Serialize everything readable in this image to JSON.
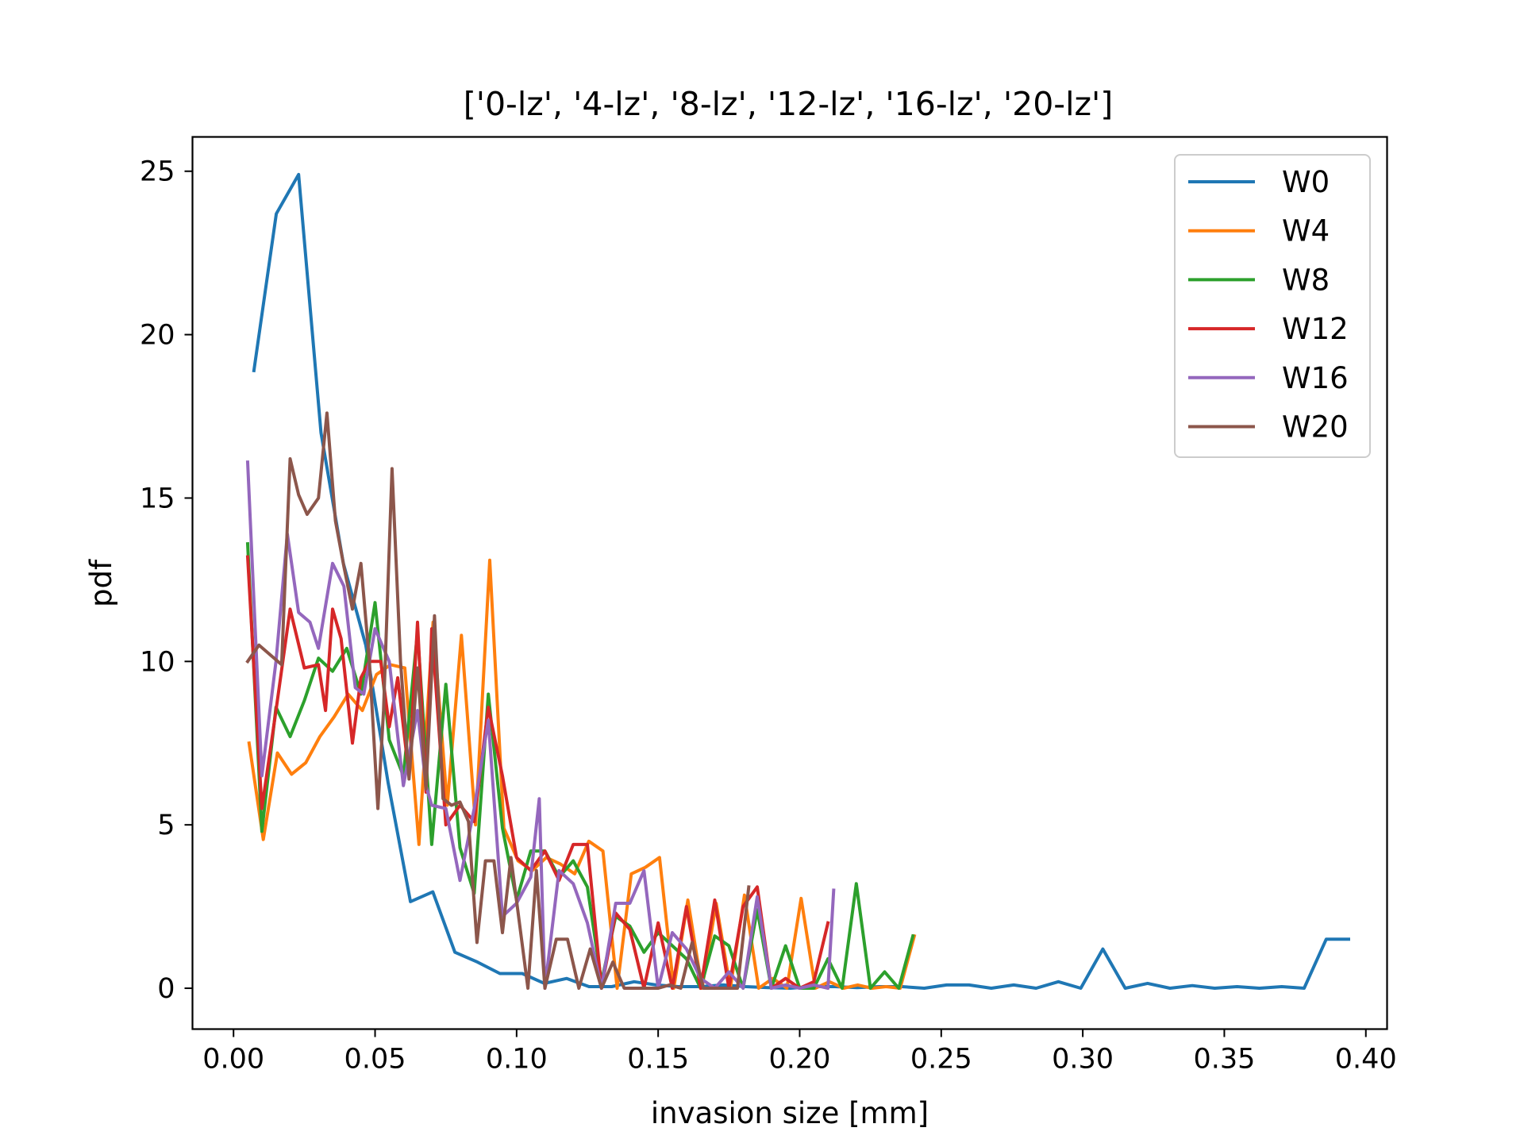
{
  "chart_data": {
    "type": "line",
    "title": "['0-lz', '4-lz', '8-lz', '12-lz', '16-lz', '20-lz']",
    "xlabel": "invasion size [mm]",
    "ylabel": "pdf",
    "xlim": [
      -0.0145,
      0.4075
    ],
    "ylim": [
      -1.25,
      26.05
    ],
    "xticks": [
      0.0,
      0.05,
      0.1,
      0.15,
      0.2,
      0.25,
      0.3,
      0.35,
      0.4
    ],
    "xtick_labels": [
      "0.00",
      "0.05",
      "0.10",
      "0.15",
      "0.20",
      "0.25",
      "0.30",
      "0.35",
      "0.40"
    ],
    "yticks": [
      0,
      5,
      10,
      15,
      20,
      25
    ],
    "ytick_labels": [
      "0",
      "5",
      "10",
      "15",
      "20",
      "25"
    ],
    "grid": false,
    "legend_position": "top-right",
    "series": [
      {
        "name": "W0",
        "color": "#1f77b4",
        "x": [
          0.0072,
          0.0151,
          0.023,
          0.0309,
          0.0388,
          0.0467,
          0.0546,
          0.0625,
          0.0704,
          0.0782,
          0.0862,
          0.0941,
          0.102,
          0.1098,
          0.1177,
          0.1256,
          0.1336,
          0.1415,
          0.1493,
          0.1572,
          0.1651,
          0.173,
          0.1809,
          0.1888,
          0.1967,
          0.2046,
          0.2125,
          0.2203,
          0.2282,
          0.2361,
          0.244,
          0.2519,
          0.2598,
          0.2677,
          0.2756,
          0.2835,
          0.2914,
          0.2993,
          0.3071,
          0.315,
          0.3229,
          0.3308,
          0.3387,
          0.3466,
          0.3545,
          0.3624,
          0.3703,
          0.3782,
          0.386,
          0.3939
        ],
        "y": [
          18.9,
          23.7,
          24.9,
          17.0,
          13.0,
          10.5,
          6.3,
          2.65,
          2.95,
          1.1,
          0.8,
          0.45,
          0.45,
          0.15,
          0.3,
          0.05,
          0.05,
          0.2,
          0.1,
          0.05,
          0.05,
          0.1,
          0.05,
          0.02,
          0.0,
          0.05,
          0.05,
          0.02,
          0.05,
          0.05,
          0.0,
          0.1,
          0.1,
          0.0,
          0.1,
          0.0,
          0.2,
          0.0,
          1.2,
          0.0,
          0.15,
          0.0,
          0.08,
          0.0,
          0.05,
          0.0,
          0.05,
          0.0,
          1.5,
          1.5
        ]
      },
      {
        "name": "W4",
        "color": "#ff7f0e",
        "x": [
          0.0055,
          0.0105,
          0.0155,
          0.0205,
          0.0255,
          0.0305,
          0.0355,
          0.0405,
          0.0455,
          0.0505,
          0.0555,
          0.0605,
          0.0655,
          0.0705,
          0.0755,
          0.0805,
          0.0855,
          0.0905,
          0.0955,
          0.1005,
          0.1055,
          0.1105,
          0.1155,
          0.1205,
          0.1255,
          0.1305,
          0.1355,
          0.1405,
          0.1455,
          0.1505,
          0.1555,
          0.1605,
          0.1655,
          0.1705,
          0.1755,
          0.1805,
          0.1855,
          0.1905,
          0.1955,
          0.2005,
          0.2055,
          0.2105,
          0.2155,
          0.2205,
          0.2255,
          0.2305,
          0.2355,
          0.2405
        ],
        "y": [
          7.5,
          4.55,
          7.2,
          6.55,
          6.9,
          7.7,
          8.3,
          9.0,
          8.5,
          9.6,
          9.9,
          9.8,
          4.4,
          11.2,
          5.6,
          10.8,
          5.0,
          13.1,
          4.9,
          3.9,
          3.6,
          4.0,
          3.8,
          3.5,
          4.5,
          4.2,
          0.0,
          3.5,
          3.7,
          4.0,
          0.0,
          2.7,
          0.0,
          2.6,
          0.0,
          2.85,
          0.0,
          0.3,
          0.0,
          2.75,
          0.0,
          0.2,
          0.0,
          0.1,
          0.0,
          0.05,
          0.0,
          1.6
        ]
      },
      {
        "name": "W8",
        "color": "#2ca02c",
        "x": [
          0.005,
          0.01,
          0.015,
          0.02,
          0.025,
          0.03,
          0.035,
          0.04,
          0.045,
          0.05,
          0.055,
          0.06,
          0.065,
          0.07,
          0.075,
          0.08,
          0.085,
          0.09,
          0.095,
          0.1,
          0.105,
          0.11,
          0.115,
          0.12,
          0.125,
          0.13,
          0.135,
          0.14,
          0.145,
          0.15,
          0.155,
          0.16,
          0.165,
          0.17,
          0.175,
          0.18,
          0.185,
          0.19,
          0.195,
          0.2,
          0.205,
          0.21,
          0.215,
          0.22,
          0.225,
          0.23,
          0.235,
          0.24
        ],
        "y": [
          13.6,
          4.8,
          8.6,
          7.7,
          8.8,
          10.1,
          9.7,
          10.4,
          9.0,
          11.8,
          7.6,
          6.5,
          10.9,
          4.4,
          9.3,
          4.3,
          2.9,
          9.0,
          4.9,
          2.7,
          4.2,
          4.2,
          3.4,
          3.9,
          3.1,
          0.2,
          2.2,
          1.9,
          1.1,
          1.7,
          1.3,
          0.9,
          0.0,
          1.6,
          1.3,
          0.0,
          2.4,
          0.0,
          1.3,
          0.0,
          0.0,
          0.9,
          0.0,
          3.2,
          0.0,
          0.5,
          0.0,
          1.6
        ]
      },
      {
        "name": "W12",
        "color": "#d62728",
        "x": [
          0.005,
          0.01,
          0.015,
          0.02,
          0.025,
          0.03,
          0.0325,
          0.035,
          0.038,
          0.042,
          0.045,
          0.048,
          0.052,
          0.055,
          0.058,
          0.062,
          0.065,
          0.068,
          0.07,
          0.075,
          0.08,
          0.085,
          0.09,
          0.095,
          0.1,
          0.105,
          0.11,
          0.115,
          0.12,
          0.125,
          0.13,
          0.135,
          0.14,
          0.145,
          0.15,
          0.155,
          0.16,
          0.165,
          0.17,
          0.175,
          0.18,
          0.185,
          0.19,
          0.195,
          0.2,
          0.205,
          0.21
        ],
        "y": [
          13.2,
          5.5,
          8.5,
          11.6,
          9.8,
          9.9,
          8.5,
          11.6,
          10.7,
          7.5,
          9.5,
          10.0,
          10.0,
          8.0,
          9.5,
          6.5,
          11.2,
          6.0,
          11.0,
          5.0,
          5.6,
          5.1,
          8.6,
          6.5,
          4.0,
          3.6,
          4.2,
          3.3,
          4.4,
          4.4,
          0.0,
          2.3,
          1.8,
          0.0,
          2.0,
          0.0,
          2.5,
          0.0,
          2.7,
          0.0,
          2.5,
          3.1,
          0.0,
          0.3,
          0.0,
          0.2,
          2.0
        ]
      },
      {
        "name": "W16",
        "color": "#9467bd",
        "x": [
          0.005,
          0.01,
          0.015,
          0.019,
          0.023,
          0.027,
          0.03,
          0.035,
          0.039,
          0.043,
          0.046,
          0.05,
          0.055,
          0.06,
          0.065,
          0.068,
          0.07,
          0.075,
          0.08,
          0.085,
          0.09,
          0.095,
          0.1,
          0.105,
          0.108,
          0.11,
          0.115,
          0.12,
          0.125,
          0.13,
          0.135,
          0.14,
          0.145,
          0.15,
          0.155,
          0.16,
          0.165,
          0.17,
          0.175,
          0.18,
          0.185,
          0.19,
          0.195,
          0.2,
          0.205,
          0.21,
          0.212
        ],
        "y": [
          16.1,
          6.5,
          10.0,
          13.9,
          11.5,
          11.2,
          10.4,
          13.0,
          12.3,
          9.2,
          9.0,
          11.0,
          10.0,
          6.2,
          8.5,
          6.2,
          5.6,
          5.5,
          3.3,
          5.5,
          8.2,
          2.2,
          2.6,
          3.4,
          5.8,
          0.0,
          3.6,
          3.2,
          2.0,
          0.0,
          2.6,
          2.6,
          3.6,
          0.0,
          1.7,
          1.2,
          0.3,
          0.0,
          0.5,
          0.0,
          2.8,
          0.0,
          0.1,
          0.0,
          0.1,
          0.0,
          3.0
        ]
      },
      {
        "name": "W20",
        "color": "#8c564b",
        "x": [
          0.005,
          0.009,
          0.013,
          0.017,
          0.02,
          0.023,
          0.026,
          0.03,
          0.033,
          0.036,
          0.039,
          0.042,
          0.045,
          0.048,
          0.051,
          0.053,
          0.056,
          0.059,
          0.062,
          0.065,
          0.068,
          0.071,
          0.074,
          0.077,
          0.08,
          0.083,
          0.086,
          0.089,
          0.092,
          0.095,
          0.098,
          0.101,
          0.104,
          0.107,
          0.11,
          0.114,
          0.118,
          0.122,
          0.126,
          0.13,
          0.134,
          0.138,
          0.142,
          0.146,
          0.15,
          0.154,
          0.158,
          0.162,
          0.166,
          0.17,
          0.174,
          0.178,
          0.182
        ],
        "y": [
          10.0,
          10.5,
          10.2,
          9.9,
          16.2,
          15.1,
          14.5,
          15.0,
          17.6,
          14.3,
          12.9,
          11.6,
          13.0,
          10.0,
          5.5,
          8.5,
          15.9,
          10.0,
          6.4,
          9.8,
          6.1,
          11.4,
          5.8,
          5.6,
          5.7,
          5.1,
          1.4,
          3.9,
          3.9,
          1.7,
          4.0,
          2.0,
          0.0,
          3.6,
          0.0,
          1.5,
          1.5,
          0.0,
          1.2,
          0.0,
          0.8,
          0.0,
          0.0,
          0.0,
          0.0,
          0.1,
          0.0,
          1.4,
          0.0,
          0.0,
          0.0,
          0.0,
          3.1
        ]
      }
    ]
  }
}
